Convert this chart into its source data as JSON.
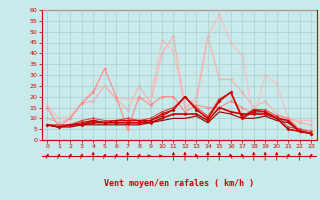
{
  "x": [
    0,
    1,
    2,
    3,
    4,
    5,
    6,
    7,
    8,
    9,
    10,
    11,
    12,
    13,
    14,
    15,
    16,
    17,
    18,
    19,
    20,
    21,
    22,
    23
  ],
  "lines": [
    {
      "y": [
        16,
        10,
        11,
        17,
        23,
        25,
        19,
        19,
        19,
        20,
        46,
        41,
        15,
        20,
        48,
        58,
        45,
        39,
        10,
        30,
        26,
        10,
        9,
        9
      ],
      "color": "#ffbbbb",
      "lw": 0.8,
      "marker": "D",
      "ms": 1.8,
      "zorder": 2
    },
    {
      "y": [
        10,
        8,
        10,
        17,
        18,
        25,
        19,
        14,
        25,
        17,
        40,
        48,
        15,
        18,
        48,
        28,
        28,
        22,
        15,
        18,
        12,
        10,
        8,
        7
      ],
      "color": "#ffaaaa",
      "lw": 0.8,
      "marker": "D",
      "ms": 1.8,
      "zorder": 2
    },
    {
      "y": [
        15,
        6,
        10,
        17,
        22,
        33,
        20,
        5,
        20,
        16,
        20,
        20,
        13,
        16,
        15,
        15,
        18,
        15,
        12,
        12,
        11,
        10,
        5,
        3
      ],
      "color": "#ff8888",
      "lw": 0.8,
      "marker": "D",
      "ms": 1.8,
      "zorder": 3
    },
    {
      "y": [
        7,
        7,
        7,
        9,
        10,
        9,
        9,
        10,
        9,
        10,
        13,
        15,
        20,
        15,
        11,
        19,
        22,
        11,
        14,
        14,
        11,
        6,
        5,
        4
      ],
      "color": "#dd4444",
      "lw": 0.8,
      "marker": "D",
      "ms": 1.8,
      "zorder": 4
    },
    {
      "y": [
        7,
        6,
        7,
        8,
        9,
        8,
        9,
        9,
        9,
        9,
        12,
        14,
        20,
        14,
        10,
        18,
        22,
        10,
        14,
        13,
        10,
        5,
        4,
        3
      ],
      "color": "#cc0000",
      "lw": 0.9,
      "marker": "D",
      "ms": 1.8,
      "zorder": 5
    },
    {
      "y": [
        7,
        6,
        7,
        7,
        9,
        8,
        8,
        8,
        8,
        9,
        11,
        14,
        20,
        14,
        10,
        18,
        22,
        10,
        13,
        13,
        10,
        5,
        4,
        3
      ],
      "color": "#cc0000",
      "lw": 0.9,
      "marker": "D",
      "ms": 1.8,
      "zorder": 5
    },
    {
      "y": [
        7,
        6,
        7,
        7,
        8,
        8,
        8,
        8,
        8,
        8,
        10,
        12,
        12,
        12,
        9,
        15,
        13,
        12,
        12,
        12,
        10,
        9,
        4,
        3
      ],
      "color": "#cc0000",
      "lw": 1.2,
      "marker": "D",
      "ms": 1.8,
      "zorder": 6
    },
    {
      "y": [
        7,
        6,
        6,
        7,
        7,
        7,
        7,
        7,
        7,
        8,
        9,
        10,
        10,
        11,
        8,
        13,
        12,
        10,
        10,
        11,
        9,
        8,
        4,
        3
      ],
      "color": "#880000",
      "lw": 0.8,
      "marker": null,
      "ms": 0,
      "zorder": 4
    }
  ],
  "arrow_angles": [
    45,
    45,
    45,
    45,
    0,
    45,
    45,
    0,
    45,
    90,
    90,
    0,
    0,
    315,
    0,
    0,
    315,
    315,
    0,
    0,
    0,
    45,
    0,
    45
  ],
  "xlabel": "Vent moyen/en rafales ( km/h )",
  "ylim": [
    0,
    60
  ],
  "xlim": [
    -0.5,
    23.5
  ],
  "yticks": [
    0,
    5,
    10,
    15,
    20,
    25,
    30,
    35,
    40,
    45,
    50,
    55,
    60
  ],
  "xticks": [
    0,
    1,
    2,
    3,
    4,
    5,
    6,
    7,
    8,
    9,
    10,
    11,
    12,
    13,
    14,
    15,
    16,
    17,
    18,
    19,
    20,
    21,
    22,
    23
  ],
  "bg_color": "#c8eaea",
  "grid_color": "#aacccc",
  "line_color": "#cc0000",
  "arrow_color": "#cc0000",
  "axis_line_color": "#cc0000"
}
